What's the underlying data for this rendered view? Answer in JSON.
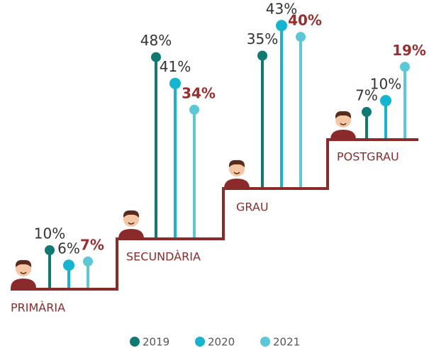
{
  "chart_data": {
    "type": "stair-lollipop",
    "categories": [
      "PRIMÀRIA",
      "SECUNDÀRIA",
      "GRAU",
      "POSTGRAU"
    ],
    "series": [
      {
        "name": "2019",
        "color": "#0e7a72",
        "values": [
          10,
          48,
          35,
          7
        ],
        "value_labels": [
          "10%",
          "48%",
          "35%",
          "7%"
        ]
      },
      {
        "name": "2020",
        "color": "#13b5d0",
        "values": [
          6,
          41,
          43,
          10
        ],
        "value_labels": [
          "6%",
          "41%",
          "43%",
          "10%"
        ]
      },
      {
        "name": "2021",
        "color": "#5bc8d8",
        "values": [
          7,
          34,
          40,
          19
        ],
        "value_labels": [
          "7%",
          "34%",
          "40%",
          "19%"
        ]
      }
    ]
  }
}
